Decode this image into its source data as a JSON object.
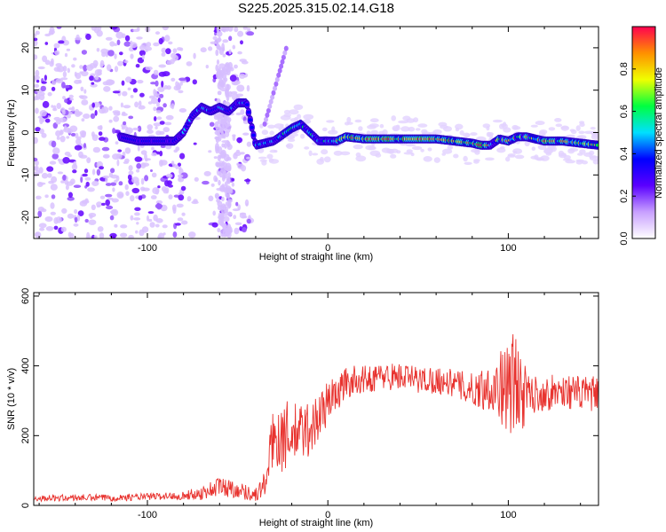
{
  "title": "S225.2025.315.02.14.G18",
  "chart_data": [
    {
      "type": "heatmap",
      "title": "S225.2025.315.02.14.G18",
      "xlabel": "Height of straight line (km)",
      "ylabel": "Frequency (Hz)",
      "xlim": [
        -163,
        150
      ],
      "ylim": [
        -25,
        25
      ],
      "xticks": [
        "-100",
        "0",
        "100"
      ],
      "yticks": [
        "20",
        "10",
        "0",
        "-10",
        "-20"
      ],
      "xtick_values": [
        -100,
        0,
        100
      ],
      "ytick_values": [
        20,
        10,
        0,
        -10,
        -20
      ],
      "colorbar": {
        "label": "Normalized spectral amplitude",
        "range": [
          0,
          1
        ],
        "ticks": [
          "0.0",
          "0.2",
          "0.4",
          "0.6",
          "0.8"
        ],
        "tick_values": [
          0.0,
          0.2,
          0.4,
          0.6,
          0.8
        ],
        "colors": [
          "#ffffff",
          "#c8a0ff",
          "#5a00ff",
          "#0000ff",
          "#00e0ff",
          "#00ff40",
          "#f0ff00",
          "#ff9000",
          "#ff0050"
        ]
      },
      "ridge": {
        "x": [
          -115,
          -105,
          -95,
          -85,
          -80,
          -75,
          -70,
          -65,
          -60,
          -55,
          -50,
          -45,
          -40,
          -30,
          -20,
          -15,
          -10,
          -5,
          0,
          5,
          10,
          20,
          30,
          40,
          50,
          60,
          70,
          80,
          85,
          90,
          95,
          100,
          105,
          110,
          120,
          130,
          140,
          150
        ],
        "y": [
          -1,
          -2,
          -2,
          -2,
          0,
          4,
          6,
          5,
          6,
          5,
          7,
          7,
          -3,
          -2,
          1,
          2,
          0,
          -2,
          -2,
          -2,
          -1,
          -1.5,
          -1.5,
          -1.5,
          -1.5,
          -1.5,
          -2,
          -2.5,
          -3,
          -3,
          -1.5,
          -2,
          -1,
          -1,
          -2,
          -2,
          -2.5,
          -3
        ]
      }
    },
    {
      "type": "line",
      "title": "",
      "xlabel": "Height of straight line (km)",
      "ylabel": "SNR (10 * v/v)",
      "xlim": [
        -163,
        150
      ],
      "ylim": [
        0,
        610
      ],
      "xticks": [
        "-100",
        "0",
        "100"
      ],
      "yticks": [
        "0",
        "200",
        "400",
        "600"
      ],
      "xtick_values": [
        -100,
        0,
        100
      ],
      "ytick_values": [
        0,
        200,
        400,
        600
      ],
      "color": "#e8332f",
      "series": [
        {
          "name": "SNR",
          "x": [
            -163,
            -140,
            -120,
            -100,
            -80,
            -70,
            -60,
            -50,
            -40,
            -35,
            -30,
            -25,
            -20,
            -15,
            -10,
            -5,
            0,
            5,
            10,
            15,
            20,
            25,
            30,
            40,
            50,
            60,
            70,
            80,
            90,
            100,
            105,
            110,
            120,
            130,
            140,
            150
          ],
          "values": [
            20,
            22,
            22,
            25,
            28,
            35,
            55,
            45,
            30,
            60,
            200,
            200,
            200,
            210,
            220,
            250,
            300,
            320,
            350,
            360,
            360,
            365,
            370,
            370,
            360,
            360,
            350,
            330,
            340,
            340,
            330,
            320,
            320,
            330,
            320,
            320
          ],
          "spread": [
            8,
            10,
            10,
            10,
            12,
            20,
            30,
            25,
            20,
            40,
            90,
            110,
            90,
            90,
            80,
            80,
            60,
            50,
            50,
            40,
            40,
            40,
            40,
            40,
            40,
            40,
            40,
            50,
            70,
            130,
            200,
            60,
            50,
            50,
            50,
            50
          ]
        }
      ]
    }
  ]
}
